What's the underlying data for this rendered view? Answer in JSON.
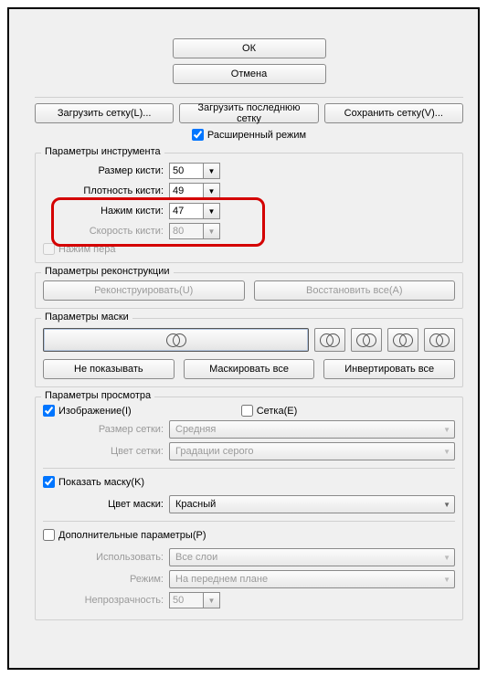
{
  "topButtons": {
    "ok": "ОК",
    "cancel": "Отмена"
  },
  "gridButtons": {
    "load": "Загрузить сетку(L)...",
    "loadLast": "Загрузить последнюю сетку",
    "save": "Сохранить сетку(V)..."
  },
  "advancedMode": {
    "label": "Расширенный режим",
    "checked": true
  },
  "tool": {
    "legend": "Параметры инструмента",
    "brushSize": {
      "label": "Размер кисти:",
      "value": "50"
    },
    "brushDensity": {
      "label": "Плотность кисти:",
      "value": "49"
    },
    "brushPressure": {
      "label": "Нажим кисти:",
      "value": "47"
    },
    "brushSpeed": {
      "label": "Скорость кисти:",
      "value": "80",
      "disabled": true
    },
    "penPressure": {
      "label": "Нажим пера",
      "disabled": true
    }
  },
  "reconstruction": {
    "legend": "Параметры реконструкции",
    "reconstruct": "Реконструировать(U)",
    "restoreAll": "Восстановить все(A)"
  },
  "mask": {
    "legend": "Параметры маски",
    "hide": "Не показывать",
    "maskAll": "Маскировать все",
    "invert": "Инвертировать все"
  },
  "view": {
    "legend": "Параметры просмотра",
    "image": {
      "label": "Изображение(I)",
      "checked": true
    },
    "grid": {
      "label": "Сетка(E)",
      "checked": false
    },
    "gridSize": {
      "label": "Размер сетки:",
      "value": "Средняя"
    },
    "gridColor": {
      "label": "Цвет сетки:",
      "value": "Градации серого"
    },
    "showMask": {
      "label": "Показать маску(K)",
      "checked": true
    },
    "maskColor": {
      "label": "Цвет маски:",
      "value": "Красный"
    },
    "additional": {
      "label": "Дополнительные параметры(P)",
      "checked": false
    },
    "use": {
      "label": "Использовать:",
      "value": "Все слои"
    },
    "mode": {
      "label": "Режим:",
      "value": "На переднем плане"
    },
    "opacity": {
      "label": "Непрозрачность:",
      "value": "50"
    }
  },
  "highlightColor": "#d40000"
}
